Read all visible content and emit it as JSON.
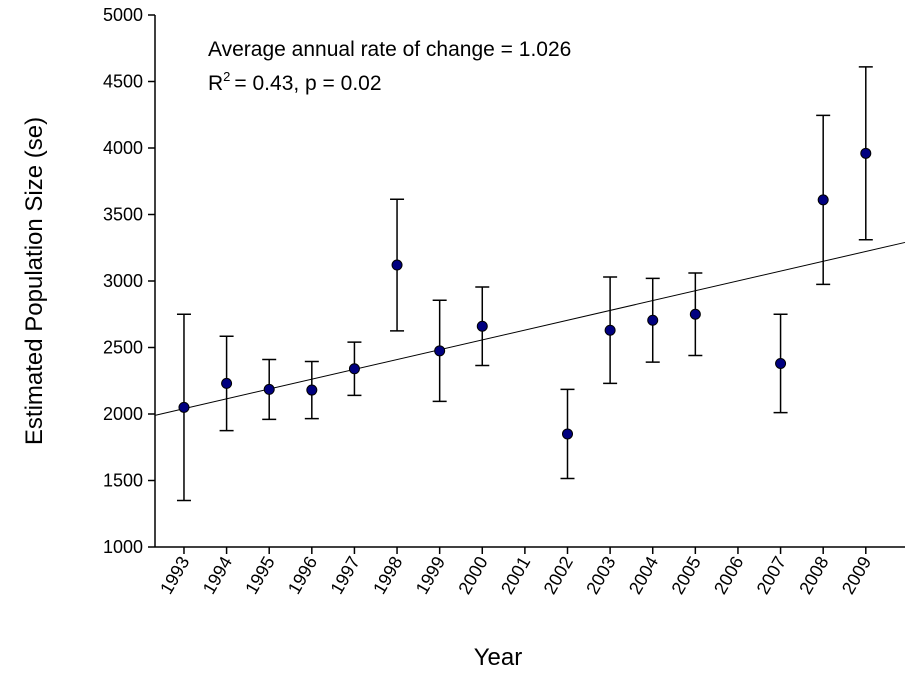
{
  "chart_data": {
    "type": "scatter",
    "x_label": "Year",
    "y_label": "Estimated Population Size (se)",
    "annotations": [
      "Average annual rate of change = 1.026",
      "R",
      "2",
      "= 0.43, p = 0.02"
    ],
    "x": [
      1993,
      1994,
      1995,
      1996,
      1997,
      1998,
      1999,
      2000,
      2001,
      2002,
      2003,
      2004,
      2005,
      2006,
      2007,
      2008,
      2009
    ],
    "series": [
      {
        "name": "Estimate",
        "color": "#000080",
        "values": [
          2050,
          2230,
          2185,
          2180,
          2340,
          3120,
          2475,
          2660,
          null,
          1850,
          2630,
          2705,
          2750,
          null,
          2380,
          3610,
          3960
        ],
        "errors": [
          700,
          355,
          225,
          215,
          200,
          495,
          380,
          295,
          null,
          335,
          400,
          315,
          310,
          null,
          370,
          635,
          650
        ]
      }
    ],
    "trendline": {
      "x": [
        1992.32,
        2009.92
      ],
      "y": [
        1990,
        3290
      ]
    },
    "xlim": [
      1992.32,
      2009.92
    ],
    "xticks": [
      1993,
      1994,
      1995,
      1996,
      1997,
      1998,
      1999,
      2000,
      2001,
      2002,
      2003,
      2004,
      2005,
      2006,
      2007,
      2008,
      2009
    ],
    "ylim": [
      1000,
      5000
    ],
    "yticks": [
      1000,
      1500,
      2000,
      2500,
      3000,
      3500,
      4000,
      4500,
      5000
    ]
  }
}
